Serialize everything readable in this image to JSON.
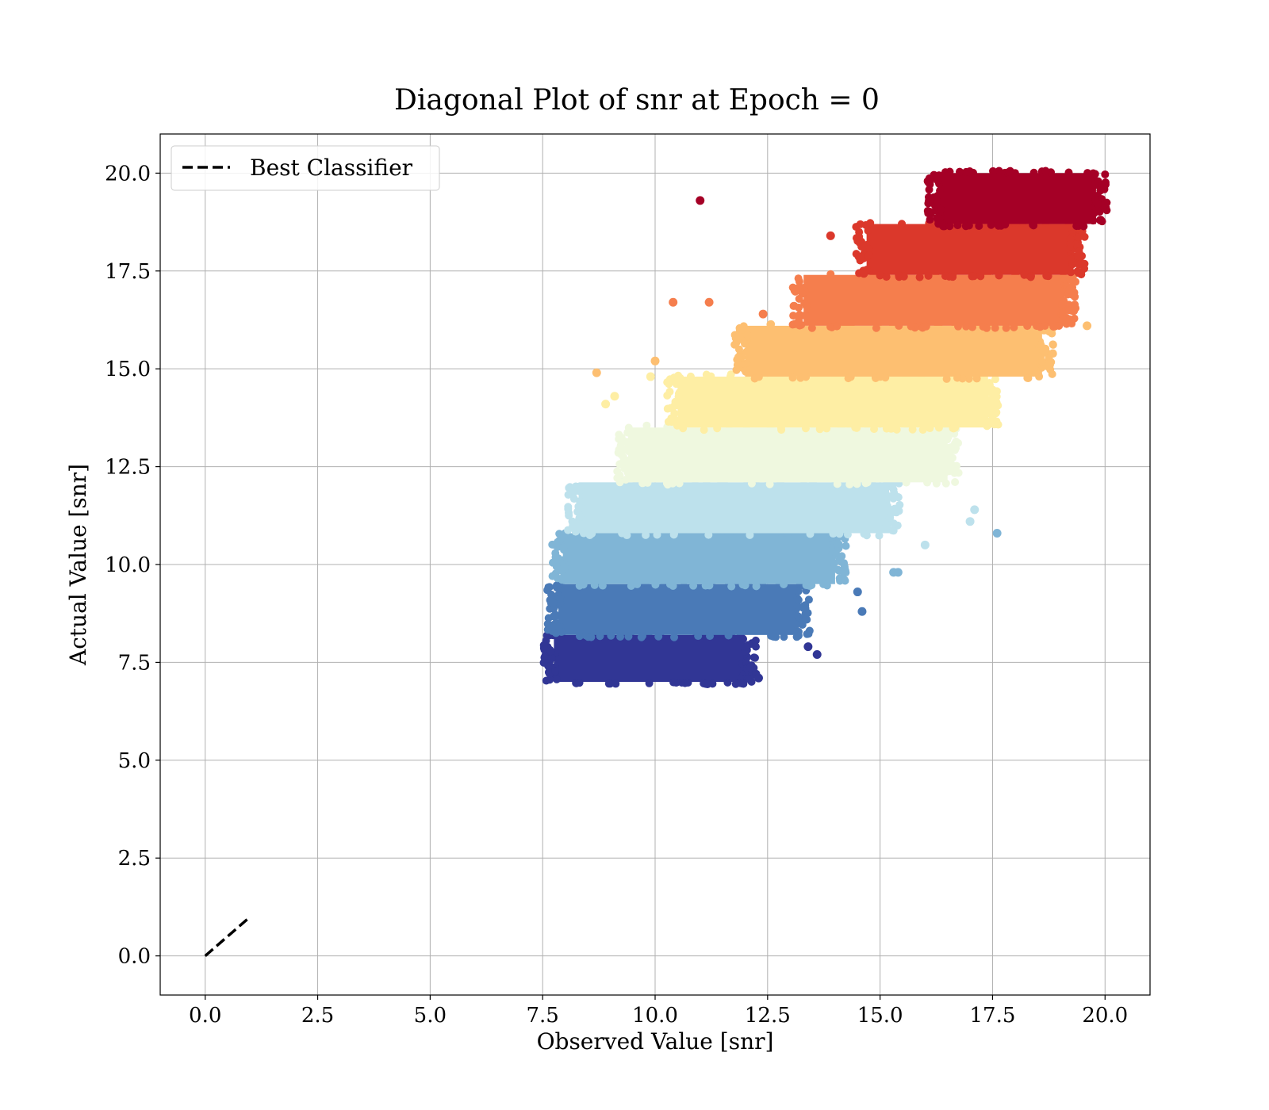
{
  "chart_data": {
    "type": "scatter",
    "title": "Diagonal Plot of snr at Epoch = 0",
    "xlabel": "Observed Value [snr]",
    "ylabel": "Actual Value [snr]",
    "xlim": [
      -1,
      21
    ],
    "ylim": [
      -1,
      21
    ],
    "xticks": [
      0.0,
      2.5,
      5.0,
      7.5,
      10.0,
      12.5,
      15.0,
      17.5,
      20.0
    ],
    "yticks": [
      0.0,
      2.5,
      5.0,
      7.5,
      10.0,
      12.5,
      15.0,
      17.5,
      20.0
    ],
    "xtick_labels": [
      "0.0",
      "2.5",
      "5.0",
      "7.5",
      "10.0",
      "12.5",
      "15.0",
      "17.5",
      "20.0"
    ],
    "ytick_labels": [
      "0.0",
      "2.5",
      "5.0",
      "7.5",
      "10.0",
      "12.5",
      "15.0",
      "17.5",
      "20.0"
    ],
    "grid": true,
    "legend": {
      "placement": "top-left",
      "entries": [
        "Best Classifier"
      ]
    },
    "reference_line": {
      "name": "Best Classifier",
      "style": "dashed",
      "color": "#000000",
      "x": [
        0,
        1
      ],
      "y": [
        0,
        1
      ]
    },
    "bands": [
      {
        "y_range": [
          7.0,
          8.2
        ],
        "x_range": [
          7.75,
          12.0
        ],
        "color": "#313695"
      },
      {
        "y_range": [
          8.2,
          9.5
        ],
        "x_range": [
          7.85,
          13.2
        ],
        "color": "#4a7ab7"
      },
      {
        "y_range": [
          9.5,
          10.8
        ],
        "x_range": [
          7.95,
          14.0
        ],
        "color": "#80b5d6"
      },
      {
        "y_range": [
          10.8,
          12.1
        ],
        "x_range": [
          8.3,
          15.2
        ],
        "color": "#bde1ec"
      },
      {
        "y_range": [
          12.1,
          13.5
        ],
        "x_range": [
          9.4,
          16.5
        ],
        "color": "#eff8df"
      },
      {
        "y_range": [
          13.5,
          14.8
        ],
        "x_range": [
          10.5,
          17.4
        ],
        "color": "#feeea4"
      },
      {
        "y_range": [
          14.8,
          16.1
        ],
        "x_range": [
          12.0,
          18.6
        ],
        "color": "#fdbf71"
      },
      {
        "y_range": [
          16.1,
          17.4
        ],
        "x_range": [
          13.3,
          19.1
        ],
        "color": "#f57e4d"
      },
      {
        "y_range": [
          17.4,
          18.7
        ],
        "x_range": [
          14.7,
          19.3
        ],
        "color": "#db382b"
      },
      {
        "y_range": [
          18.7,
          20.0
        ],
        "x_range": [
          16.3,
          19.8
        ],
        "color": "#a50026"
      }
    ],
    "outliers": [
      {
        "x": 11.0,
        "y": 19.3,
        "color": "#a50026"
      },
      {
        "x": 10.4,
        "y": 16.7,
        "color": "#f57e4d"
      },
      {
        "x": 11.2,
        "y": 16.7,
        "color": "#f57e4d"
      },
      {
        "x": 8.7,
        "y": 14.9,
        "color": "#fdbf71"
      },
      {
        "x": 10.0,
        "y": 15.2,
        "color": "#fdbf71"
      },
      {
        "x": 8.9,
        "y": 14.1,
        "color": "#feeea4"
      },
      {
        "x": 9.1,
        "y": 14.3,
        "color": "#feeea4"
      },
      {
        "x": 9.9,
        "y": 14.8,
        "color": "#feeea4"
      },
      {
        "x": 17.6,
        "y": 10.8,
        "color": "#80b5d6"
      },
      {
        "x": 17.0,
        "y": 11.1,
        "color": "#bde1ec"
      },
      {
        "x": 17.1,
        "y": 11.4,
        "color": "#bde1ec"
      },
      {
        "x": 16.0,
        "y": 10.5,
        "color": "#bde1ec"
      },
      {
        "x": 15.4,
        "y": 9.8,
        "color": "#80b5d6"
      },
      {
        "x": 15.3,
        "y": 9.8,
        "color": "#80b5d6"
      },
      {
        "x": 14.6,
        "y": 8.8,
        "color": "#4a7ab7"
      },
      {
        "x": 14.5,
        "y": 9.3,
        "color": "#4a7ab7"
      },
      {
        "x": 13.6,
        "y": 7.7,
        "color": "#313695"
      },
      {
        "x": 13.4,
        "y": 7.9,
        "color": "#313695"
      },
      {
        "x": 12.3,
        "y": 7.1,
        "color": "#313695"
      },
      {
        "x": 19.9,
        "y": 18.8,
        "color": "#a50026"
      },
      {
        "x": 19.6,
        "y": 16.1,
        "color": "#fdbf71"
      },
      {
        "x": 13.9,
        "y": 18.4,
        "color": "#db382b"
      },
      {
        "x": 12.4,
        "y": 16.4,
        "color": "#f57e4d"
      }
    ]
  }
}
